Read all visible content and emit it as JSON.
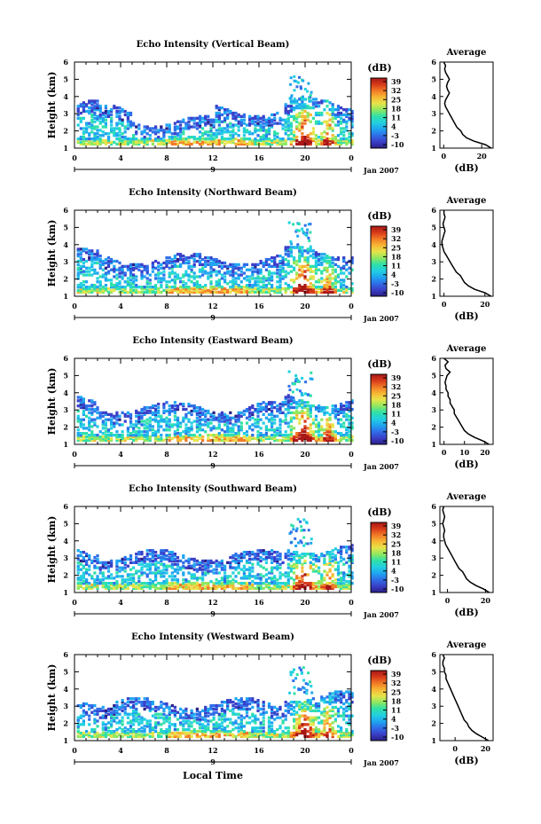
{
  "figure": {
    "x_title": "Local Time",
    "colorbar_unit": "(dB)",
    "avg_xlabel": "(dB)",
    "avg_title": "Average",
    "ylabel": "Height (km)",
    "date_label": "Jan 2007",
    "day_label": "9"
  },
  "colors": {
    "palette": [
      "#2a1f86",
      "#3a3fc8",
      "#2f6ee8",
      "#1fa6f0",
      "#22d0e0",
      "#2fe0a8",
      "#8ee860",
      "#e6e44a",
      "#f7b733",
      "#f27a26",
      "#d73a1a",
      "#a81616"
    ]
  },
  "chart_data": [
    {
      "type": "heatmap",
      "title": "Echo Intensity (Vertical Beam)",
      "xticks": [
        "0",
        "4",
        "8",
        "12",
        "16",
        "20",
        "0"
      ],
      "yticks": [
        "1",
        "2",
        "3",
        "4",
        "5",
        "6"
      ],
      "xlim": [
        0,
        24
      ],
      "ylim": [
        1,
        6
      ],
      "colorbar_ticks": [
        "39",
        "32",
        "25",
        "18",
        "11",
        "4",
        "-3",
        "-10"
      ],
      "clim": [
        -10,
        39
      ],
      "average": {
        "xticks": [
          "0",
          "20"
        ],
        "xlim": [
          -2,
          26
        ],
        "height": [
          1.0,
          1.2,
          1.4,
          1.6,
          1.8,
          2.0,
          2.2,
          2.4,
          2.6,
          2.8,
          3.0,
          3.2,
          3.4,
          3.6,
          3.8,
          4.0,
          4.2,
          4.4,
          4.6,
          4.8,
          5.0,
          5.2,
          5.4,
          5.6,
          5.8,
          6.0
        ],
        "db": [
          25,
          22,
          16,
          12,
          10,
          9,
          7,
          6,
          5,
          4,
          3,
          2,
          1,
          0.5,
          1,
          2,
          3,
          2,
          1.5,
          2,
          3,
          2,
          1,
          0.5,
          1,
          0
        ]
      }
    },
    {
      "type": "heatmap",
      "title": "Echo Intensity (Northward Beam)",
      "xticks": [
        "0",
        "4",
        "8",
        "12",
        "16",
        "20",
        "0"
      ],
      "yticks": [
        "1",
        "2",
        "3",
        "4",
        "5",
        "6"
      ],
      "xlim": [
        0,
        24
      ],
      "ylim": [
        1,
        6
      ],
      "colorbar_ticks": [
        "39",
        "32",
        "25",
        "18",
        "11",
        "4",
        "-3",
        "-10"
      ],
      "clim": [
        -10,
        39
      ],
      "average": {
        "xticks": [
          "0",
          "20"
        ],
        "xlim": [
          -2,
          24
        ],
        "height": [
          1.0,
          1.2,
          1.4,
          1.6,
          1.8,
          2.0,
          2.2,
          2.4,
          2.6,
          2.8,
          3.0,
          3.2,
          3.4,
          3.6,
          3.8,
          4.0,
          4.2,
          4.4,
          4.6,
          4.8,
          5.0,
          5.2,
          5.4,
          5.6,
          5.8,
          6.0
        ],
        "db": [
          23,
          20,
          15,
          12,
          10,
          9,
          8,
          6,
          5,
          4,
          3,
          2,
          1,
          0,
          -0.5,
          -1,
          -1,
          -0.5,
          0,
          0.5,
          0,
          -0.5,
          0,
          0.5,
          0,
          0
        ]
      }
    },
    {
      "type": "heatmap",
      "title": "Echo Intensity (Eastward Beam)",
      "xticks": [
        "0",
        "4",
        "8",
        "12",
        "16",
        "20",
        "0"
      ],
      "yticks": [
        "1",
        "2",
        "3",
        "4",
        "5",
        "6"
      ],
      "xlim": [
        0,
        24
      ],
      "ylim": [
        1,
        6
      ],
      "colorbar_ticks": [
        "39",
        "32",
        "25",
        "18",
        "11",
        "4",
        "-3",
        "-10"
      ],
      "clim": [
        -10,
        39
      ],
      "average": {
        "xticks": [
          "0",
          "10",
          "20"
        ],
        "xlim": [
          -2,
          24
        ],
        "height": [
          1.0,
          1.2,
          1.4,
          1.6,
          1.8,
          2.0,
          2.2,
          2.4,
          2.6,
          2.8,
          3.0,
          3.2,
          3.4,
          3.6,
          3.8,
          4.0,
          4.2,
          4.4,
          4.6,
          4.8,
          5.0,
          5.2,
          5.4,
          5.6,
          5.8,
          6.0
        ],
        "db": [
          22,
          19,
          15,
          12,
          10,
          9,
          8,
          7,
          6,
          5,
          5,
          4,
          3,
          3,
          2,
          2,
          1,
          1,
          0.5,
          1,
          1.5,
          3,
          1,
          0.5,
          2,
          0
        ]
      }
    },
    {
      "type": "heatmap",
      "title": "Echo Intensity (Southward Beam)",
      "xticks": [
        "0",
        "4",
        "8",
        "12",
        "16",
        "20",
        "0"
      ],
      "yticks": [
        "1",
        "2",
        "3",
        "4",
        "5",
        "6"
      ],
      "xlim": [
        0,
        24
      ],
      "ylim": [
        1,
        6
      ],
      "colorbar_ticks": [
        "39",
        "32",
        "25",
        "18",
        "11",
        "4",
        "-3",
        "-10"
      ],
      "clim": [
        -10,
        39
      ],
      "average": {
        "xticks": [
          "0",
          "20"
        ],
        "xlim": [
          -4,
          24
        ],
        "height": [
          1.0,
          1.2,
          1.4,
          1.6,
          1.8,
          2.0,
          2.2,
          2.4,
          2.6,
          2.8,
          3.0,
          3.2,
          3.4,
          3.6,
          3.8,
          4.0,
          4.2,
          4.4,
          4.6,
          4.8,
          5.0,
          5.2,
          5.4,
          5.6,
          5.8,
          6.0
        ],
        "db": [
          22,
          19,
          15,
          12,
          10,
          9,
          8,
          6,
          5,
          4,
          3,
          2,
          1,
          0,
          -1,
          -1.5,
          -2,
          -2,
          -1.5,
          -2,
          -2.5,
          -2,
          -1.5,
          -2,
          -2.5,
          -2
        ]
      }
    },
    {
      "type": "heatmap",
      "title": "Echo Intensity (Westward Beam)",
      "xticks": [
        "0",
        "4",
        "8",
        "12",
        "16",
        "20",
        "0"
      ],
      "yticks": [
        "1",
        "2",
        "3",
        "4",
        "5",
        "6"
      ],
      "xlim": [
        0,
        24
      ],
      "ylim": [
        1,
        6
      ],
      "colorbar_ticks": [
        "39",
        "32",
        "25",
        "18",
        "11",
        "4",
        "-3",
        "-10"
      ],
      "clim": [
        -10,
        39
      ],
      "average": {
        "xticks": [
          "0",
          "20"
        ],
        "xlim": [
          -10,
          25
        ],
        "height": [
          1.0,
          1.2,
          1.4,
          1.6,
          1.8,
          2.0,
          2.2,
          2.4,
          2.6,
          2.8,
          3.0,
          3.2,
          3.4,
          3.6,
          3.8,
          4.0,
          4.2,
          4.4,
          4.6,
          4.8,
          5.0,
          5.2,
          5.4,
          5.6,
          5.8,
          6.0
        ],
        "db": [
          22,
          18,
          14,
          11,
          9,
          8,
          6,
          5,
          4,
          3,
          2,
          1,
          0,
          -1,
          -2,
          -3,
          -4,
          -5,
          -6,
          -6,
          -7,
          -7,
          -8,
          -8,
          -7,
          -8
        ]
      }
    }
  ]
}
